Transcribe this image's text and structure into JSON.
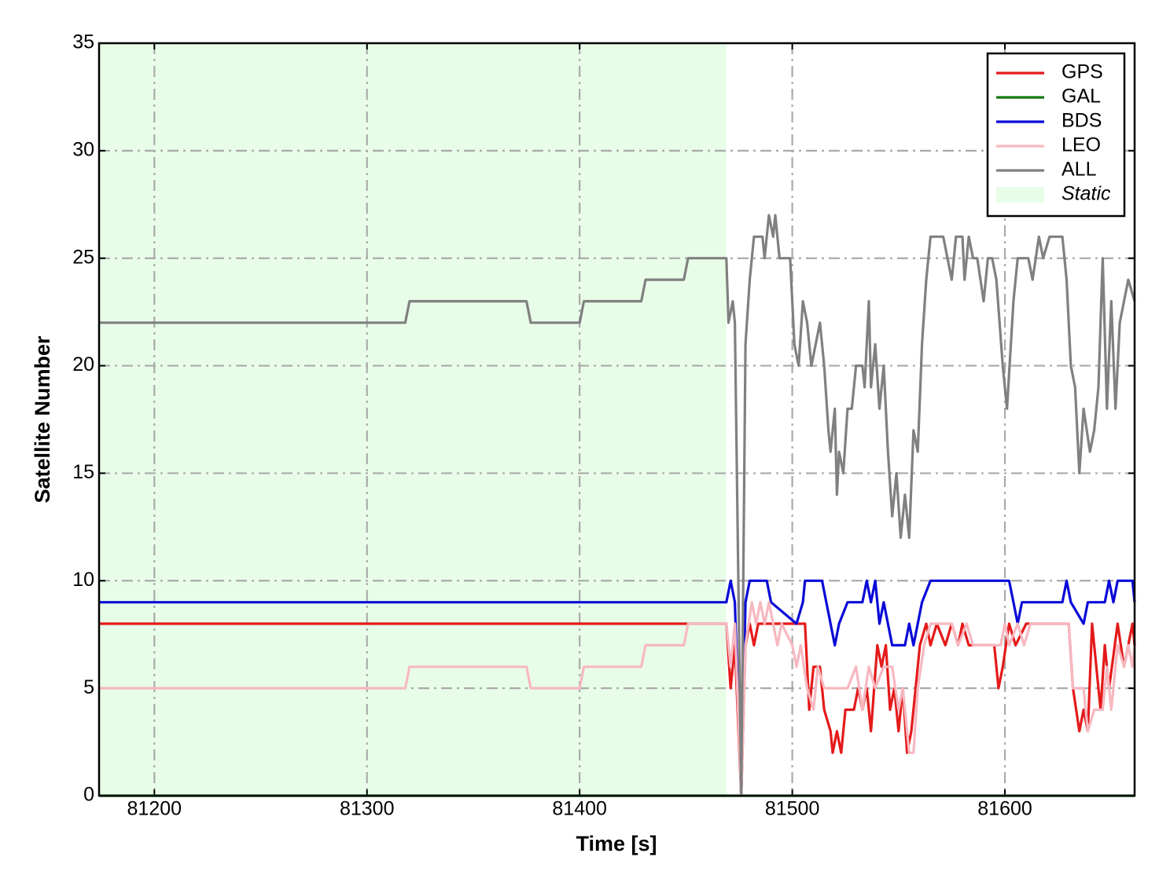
{
  "chart_data": {
    "type": "line",
    "xlabel": "Time [s]",
    "ylabel": "Satellite Number",
    "xlim": [
      81174,
      81661
    ],
    "ylim": [
      0,
      35
    ],
    "xticks": [
      81200,
      81300,
      81400,
      81500,
      81600
    ],
    "yticks": [
      0,
      5,
      10,
      15,
      20,
      25,
      30,
      35
    ],
    "grid": true,
    "legend": "upper right",
    "static": {
      "label": "Static",
      "xlim": [
        81174,
        81469
      ],
      "color": "#e8fde8"
    },
    "series": [
      {
        "name": "GPS",
        "color": "#e41a1a",
        "x": [
          81174,
          81469,
          81471,
          81473,
          81476,
          81478,
          81480,
          81482,
          81484,
          81506,
          81508,
          81510,
          81513,
          81515,
          81518,
          81519,
          81521,
          81523,
          81525,
          81529,
          81531,
          81533,
          81535,
          81537,
          81540,
          81542,
          81544,
          81546,
          81548,
          81550,
          81552,
          81554,
          81556,
          81558,
          81560,
          81563,
          81565,
          81568,
          81572,
          81575,
          81578,
          81580,
          81583,
          81595,
          81597,
          81599,
          81602,
          81605,
          81610,
          81630,
          81632,
          81635,
          81637,
          81639,
          81641,
          81643,
          81645,
          81647,
          81649,
          81653,
          81656,
          81660,
          81661
        ],
        "values": [
          8,
          8,
          5,
          7,
          0,
          7,
          8,
          7,
          8,
          8,
          4,
          6,
          6,
          4,
          3,
          2,
          3,
          2,
          4,
          4,
          5,
          4,
          5,
          3,
          7,
          6,
          7,
          4,
          5,
          3,
          5,
          2,
          3,
          5,
          7,
          8,
          7,
          8,
          7,
          8,
          7,
          8,
          7,
          7,
          5,
          6,
          8,
          7,
          8,
          8,
          5,
          3,
          4,
          3,
          8,
          6,
          4,
          7,
          5,
          8,
          6,
          8,
          7
        ]
      },
      {
        "name": "GAL",
        "color": "#107a10",
        "x": [
          81174,
          81661
        ],
        "values": [
          0,
          0
        ]
      },
      {
        "name": "BDS",
        "color": "#0a0ad8",
        "x": [
          81174,
          81469,
          81471,
          81473,
          81476,
          81478,
          81480,
          81488,
          81490,
          81502,
          81505,
          81506,
          81514,
          81516,
          81520,
          81522,
          81526,
          81533,
          81535,
          81537,
          81539,
          81541,
          81543,
          81547,
          81553,
          81555,
          81557,
          81559,
          81561,
          81565,
          81602,
          81604,
          81606,
          81608,
          81627,
          81629,
          81631,
          81637,
          81639,
          81647,
          81649,
          81651,
          81653,
          81660,
          81661
        ],
        "values": [
          9,
          9,
          10,
          9,
          0,
          9,
          10,
          10,
          9,
          8,
          9,
          10,
          10,
          9,
          7,
          8,
          9,
          9,
          10,
          9,
          10,
          8,
          9,
          7,
          7,
          8,
          7,
          8,
          9,
          10,
          10,
          9,
          8,
          9,
          9,
          10,
          9,
          8,
          9,
          9,
          10,
          9,
          10,
          10,
          9
        ]
      },
      {
        "name": "LEO",
        "color": "#f7b8c0",
        "x": [
          81174,
          81318,
          81320,
          81375,
          81377,
          81400,
          81402,
          81429,
          81431,
          81449,
          81451,
          81469,
          81471,
          81473,
          81476,
          81478,
          81481,
          81483,
          81485,
          81487,
          81489,
          81491,
          81493,
          81495,
          81500,
          81502,
          81504,
          81507,
          81510,
          81512,
          81515,
          81526,
          81530,
          81533,
          81536,
          81539,
          81543,
          81547,
          81550,
          81552,
          81555,
          81557,
          81559,
          81562,
          81565,
          81575,
          81578,
          81582,
          81585,
          81598,
          81600,
          81602,
          81606,
          81609,
          81612,
          81630,
          81632,
          81637,
          81639,
          81642,
          81646,
          81648,
          81650,
          81653,
          81656,
          81658,
          81660,
          81661
        ],
        "values": [
          5,
          5,
          6,
          6,
          5,
          5,
          6,
          6,
          7,
          7,
          8,
          8,
          6,
          8,
          0,
          7,
          9,
          8,
          9,
          8,
          9,
          8,
          7,
          8,
          7,
          6,
          7,
          5,
          4,
          6,
          5,
          5,
          6,
          4,
          6,
          5,
          6,
          6,
          4,
          5,
          2,
          2,
          5,
          7,
          8,
          8,
          7,
          8,
          7,
          7,
          8,
          7,
          8,
          7,
          8,
          8,
          5,
          5,
          3,
          4,
          4,
          6,
          4,
          7,
          6,
          7,
          6,
          7
        ]
      },
      {
        "name": "ALL",
        "color": "#808080",
        "x": [
          81174,
          81318,
          81320,
          81375,
          81377,
          81400,
          81402,
          81429,
          81431,
          81449,
          81451,
          81469,
          81470,
          81472,
          81473,
          81476,
          81478,
          81480,
          81482,
          81486,
          81487,
          81489,
          81491,
          81492,
          81494,
          81499,
          81501,
          81503,
          81505,
          81507,
          81509,
          81511,
          81513,
          81515,
          81517,
          81518,
          81520,
          81521,
          81522,
          81524,
          81526,
          81528,
          81530,
          81533,
          81534,
          81536,
          81537,
          81539,
          81541,
          81543,
          81545,
          81547,
          81549,
          81551,
          81553,
          81555,
          81557,
          81559,
          81561,
          81563,
          81565,
          81571,
          81573,
          81575,
          81577,
          81580,
          81581,
          81583,
          81585,
          81587,
          81590,
          81592,
          81594,
          81596,
          81599,
          81601,
          81604,
          81606,
          81611,
          81613,
          81616,
          81618,
          81621,
          81627,
          81629,
          81631,
          81633,
          81635,
          81637,
          81640,
          81642,
          81644,
          81646,
          81648,
          81650,
          81652,
          81654,
          81656,
          81658,
          81661
        ],
        "values": [
          22,
          22,
          23,
          23,
          22,
          22,
          23,
          23,
          24,
          24,
          25,
          25,
          22,
          23,
          22,
          0,
          21,
          24,
          26,
          26,
          25,
          27,
          26,
          27,
          25,
          25,
          21,
          20,
          23,
          22,
          20,
          21,
          22,
          20,
          17,
          16,
          18,
          14,
          16,
          15,
          18,
          18,
          20,
          20,
          19,
          23,
          19,
          21,
          18,
          20,
          16,
          13,
          15,
          12,
          14,
          12,
          17,
          16,
          21,
          24,
          26,
          26,
          25,
          24,
          26,
          26,
          24,
          26,
          25,
          25,
          23,
          25,
          25,
          24,
          20,
          18,
          23,
          25,
          25,
          24,
          26,
          25,
          26,
          26,
          24,
          20,
          19,
          15,
          18,
          16,
          17,
          19,
          25,
          18,
          23,
          18,
          22,
          23,
          24,
          23
        ]
      }
    ]
  }
}
